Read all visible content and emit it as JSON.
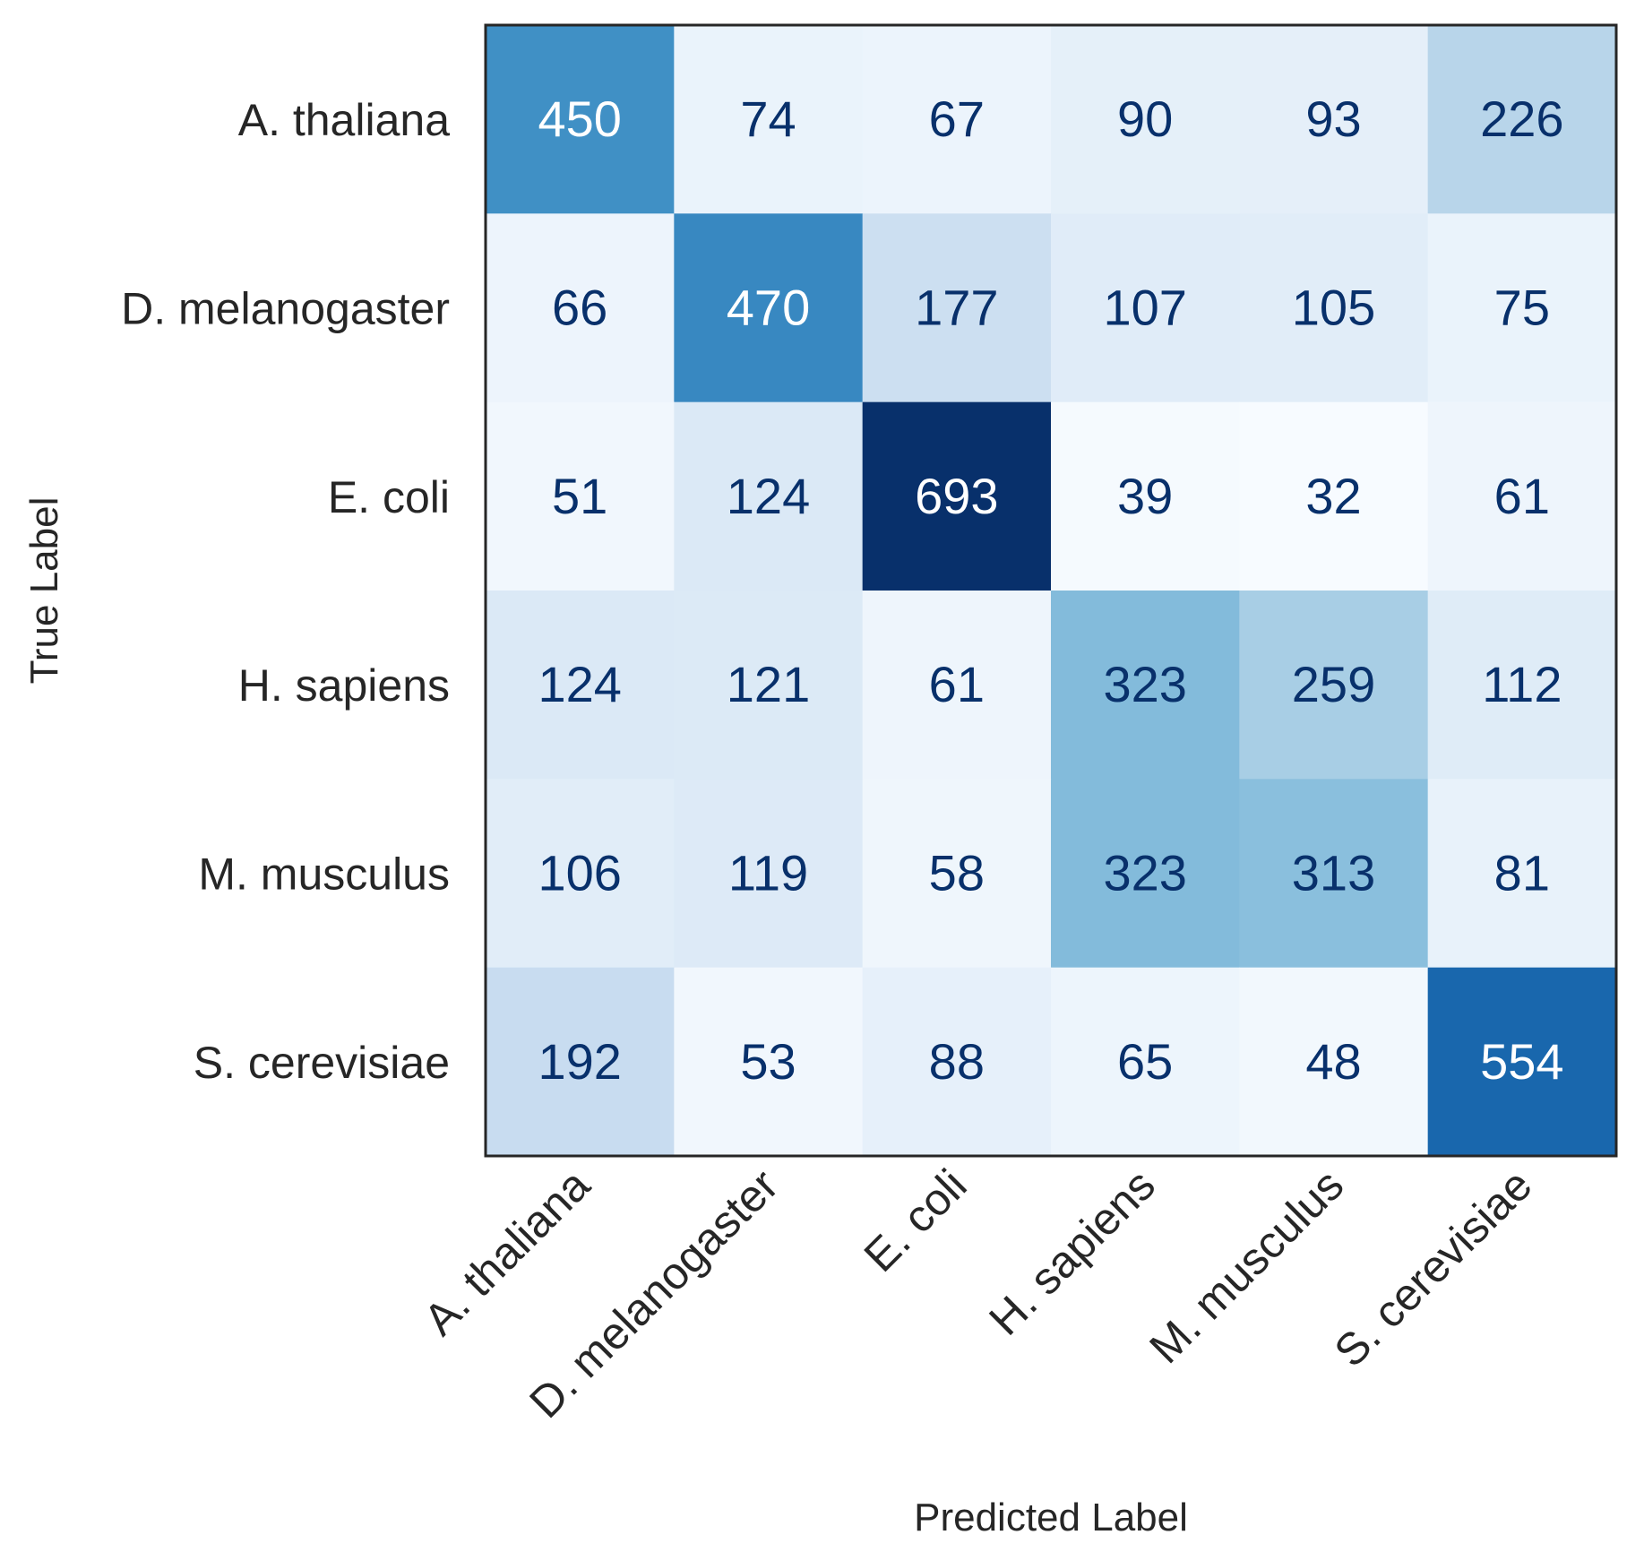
{
  "chart_data": {
    "type": "heatmap",
    "title": "",
    "xlabel": "Predicted Label",
    "ylabel": "True Label",
    "x_categories": [
      "A. thaliana",
      "D. melanogaster",
      "E. coli",
      "H. sapiens",
      "M. musculus",
      "S. cerevisiae"
    ],
    "y_categories": [
      "A. thaliana",
      "D. melanogaster",
      "E. coli",
      "H. sapiens",
      "M. musculus",
      "S. cerevisiae"
    ],
    "values": [
      [
        450,
        74,
        67,
        90,
        93,
        226
      ],
      [
        66,
        470,
        177,
        107,
        105,
        75
      ],
      [
        51,
        124,
        693,
        39,
        32,
        61
      ],
      [
        124,
        121,
        61,
        323,
        259,
        112
      ],
      [
        106,
        119,
        58,
        323,
        313,
        81
      ],
      [
        192,
        53,
        88,
        65,
        48,
        554
      ]
    ],
    "value_range": [
      32,
      693
    ],
    "colormap": "Blues",
    "cell_annotations": true,
    "colorbar": false,
    "grid": false,
    "x_tick_rotation_deg": 45,
    "colors": {
      "frame": "#262626",
      "text_dark": "#08306b",
      "text_light": "#ffffff",
      "label": "#262626"
    }
  }
}
